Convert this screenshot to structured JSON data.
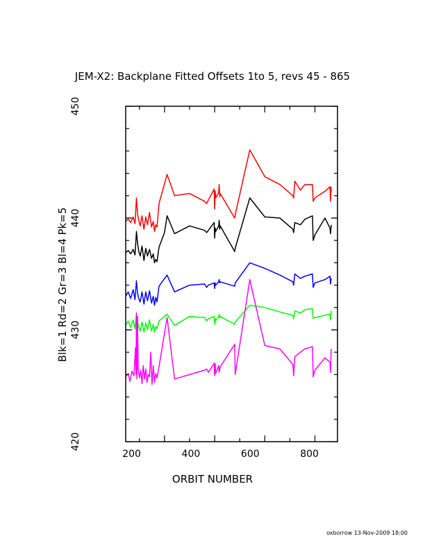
{
  "footer": "oxborrow 13-Nov-2009 18:00",
  "colors": {
    "axis": "#000000",
    "series": [
      "#000000",
      "#ff0000",
      "#00ff00",
      "#0000ff",
      "#ff00ff"
    ]
  },
  "chart_data": {
    "type": "line",
    "title": "JEM-X2: Backplane Fitted Offsets 1to 5, revs 45 - 865",
    "xlabel": "ORBIT NUMBER",
    "ylabel": "Blk=1 Rd=2 Gr=3 Bl=4 Pk=5",
    "xlim": [
      45,
      890
    ],
    "ylim": [
      420,
      450
    ],
    "x_ticks": [
      "200",
      "400",
      "600",
      "800"
    ],
    "y_ticks": [
      "420",
      "430",
      "440",
      "450"
    ],
    "grid": false,
    "series": [
      {
        "color": "#000000",
        "x": [
          45,
          55,
          65,
          75,
          82,
          88,
          92,
          97,
          103,
          110,
          118,
          125,
          132,
          140,
          148,
          155,
          160,
          165,
          170,
          178,
          200,
          210,
          240,
          300,
          360,
          368,
          375,
          398,
          400,
          402,
          404,
          416,
          418,
          420,
          422,
          480,
          482,
          540,
          600,
          660,
          712,
          715,
          720,
          742,
          760,
          790,
          793,
          800,
          840,
          860,
          862,
          865
        ],
        "y": [
          436.9,
          437.1,
          436.8,
          437.2,
          436.7,
          438.8,
          437.8,
          437.0,
          436.6,
          437.5,
          436.2,
          437.3,
          436.6,
          437.2,
          436.4,
          436.8,
          436.0,
          436.3,
          436.1,
          437.4,
          438.7,
          440.2,
          438.6,
          439.3,
          438.9,
          438.7,
          438.9,
          439.6,
          438.2,
          439.1,
          438.8,
          439.3,
          439.8,
          439.0,
          439.3,
          437.0,
          437.3,
          441.8,
          440.1,
          440.0,
          439.0,
          438.7,
          439.6,
          439.4,
          439.9,
          440.2,
          438.0,
          438.5,
          440.0,
          439.1,
          438.6,
          439.4
        ]
      },
      {
        "color": "#ff0000",
        "x": [
          45,
          55,
          65,
          75,
          82,
          88,
          92,
          97,
          103,
          110,
          118,
          125,
          132,
          140,
          148,
          155,
          160,
          165,
          170,
          178,
          210,
          240,
          300,
          360,
          368,
          375,
          398,
          400,
          402,
          404,
          416,
          418,
          420,
          422,
          480,
          482,
          540,
          600,
          660,
          712,
          715,
          720,
          742,
          760,
          790,
          793,
          800,
          840,
          860,
          862,
          865
        ],
        "y": [
          439.7,
          439.9,
          439.6,
          440.1,
          439.5,
          441.8,
          440.4,
          439.8,
          439.3,
          440.2,
          439.0,
          440.1,
          439.4,
          440.5,
          439.2,
          439.7,
          438.8,
          439.4,
          439.2,
          441.3,
          443.9,
          442.0,
          442.2,
          441.5,
          441.3,
          441.6,
          442.6,
          440.8,
          442.4,
          441.8,
          442.3,
          443.0,
          441.9,
          442.2,
          440.0,
          440.3,
          446.1,
          443.7,
          443.0,
          442.0,
          441.8,
          443.3,
          442.5,
          443.0,
          443.0,
          441.5,
          441.8,
          442.4,
          442.8,
          441.5,
          442.8
        ]
      },
      {
        "color": "#00ff00",
        "x": [
          45,
          55,
          65,
          75,
          82,
          88,
          92,
          97,
          103,
          110,
          118,
          125,
          132,
          140,
          148,
          155,
          160,
          165,
          170,
          178,
          210,
          240,
          300,
          360,
          368,
          375,
          398,
          400,
          402,
          404,
          416,
          418,
          420,
          422,
          480,
          482,
          540,
          600,
          660,
          712,
          715,
          720,
          742,
          760,
          790,
          793,
          800,
          840,
          860,
          862,
          865
        ],
        "y": [
          430.4,
          430.8,
          430.2,
          430.9,
          430.1,
          431.5,
          430.8,
          430.3,
          429.9,
          430.7,
          429.8,
          430.6,
          430.0,
          430.9,
          429.9,
          430.5,
          429.8,
          430.3,
          430.1,
          430.8,
          431.4,
          430.4,
          431.2,
          431.1,
          430.8,
          431.0,
          431.2,
          430.5,
          431.0,
          430.8,
          431.2,
          431.4,
          431.1,
          431.2,
          430.5,
          430.7,
          432.2,
          432.0,
          431.6,
          431.3,
          431.0,
          431.7,
          431.5,
          431.8,
          431.9,
          431.0,
          431.1,
          431.3,
          431.4,
          430.9,
          431.7
        ]
      },
      {
        "color": "#0000ff",
        "x": [
          45,
          55,
          65,
          75,
          82,
          88,
          92,
          97,
          103,
          110,
          118,
          125,
          132,
          140,
          148,
          155,
          160,
          165,
          170,
          178,
          210,
          240,
          300,
          360,
          368,
          375,
          398,
          400,
          402,
          404,
          416,
          418,
          420,
          422,
          480,
          482,
          540,
          600,
          660,
          712,
          715,
          720,
          742,
          760,
          790,
          793,
          800,
          840,
          860,
          862,
          865
        ],
        "y": [
          433.0,
          433.4,
          432.8,
          433.6,
          432.7,
          434.4,
          433.3,
          432.8,
          432.5,
          433.4,
          432.3,
          433.4,
          432.6,
          433.5,
          432.4,
          433.0,
          432.2,
          432.9,
          432.5,
          433.9,
          434.9,
          433.4,
          434.0,
          434.1,
          433.8,
          434.0,
          434.2,
          433.7,
          434.2,
          434.0,
          434.3,
          434.5,
          434.2,
          434.3,
          433.9,
          434.2,
          436.0,
          435.5,
          434.9,
          434.3,
          434.0,
          435.0,
          434.6,
          434.8,
          435.0,
          433.8,
          434.2,
          434.5,
          434.8,
          434.1,
          434.6
        ]
      },
      {
        "color": "#ff00ff",
        "x": [
          45,
          55,
          62,
          70,
          78,
          84,
          86,
          88,
          90,
          92,
          95,
          100,
          105,
          110,
          115,
          120,
          125,
          130,
          135,
          140,
          145,
          150,
          155,
          160,
          165,
          170,
          175,
          210,
          240,
          300,
          360,
          368,
          375,
          398,
          400,
          402,
          404,
          416,
          418,
          420,
          422,
          480,
          482,
          540,
          600,
          660,
          712,
          715,
          720,
          742,
          760,
          790,
          793,
          800,
          840,
          860,
          862,
          865
        ],
        "y": [
          425.8,
          426.1,
          425.4,
          426.3,
          425.9,
          428.4,
          426.0,
          431.5,
          425.6,
          431.2,
          426.5,
          425.7,
          426.4,
          425.2,
          426.8,
          425.6,
          426.5,
          425.3,
          426.0,
          425.8,
          428.0,
          425.1,
          426.8,
          425.3,
          426.1,
          425.7,
          426.3,
          431.1,
          425.6,
          426.0,
          426.4,
          426.5,
          426.2,
          427.0,
          425.9,
          427.0,
          426.1,
          426.8,
          426.2,
          426.4,
          426.7,
          428.7,
          426.0,
          434.5,
          428.6,
          428.3,
          426.9,
          425.9,
          427.6,
          428.0,
          428.3,
          428.5,
          425.8,
          426.4,
          427.5,
          427.1,
          426.2,
          428.3
        ]
      }
    ]
  }
}
